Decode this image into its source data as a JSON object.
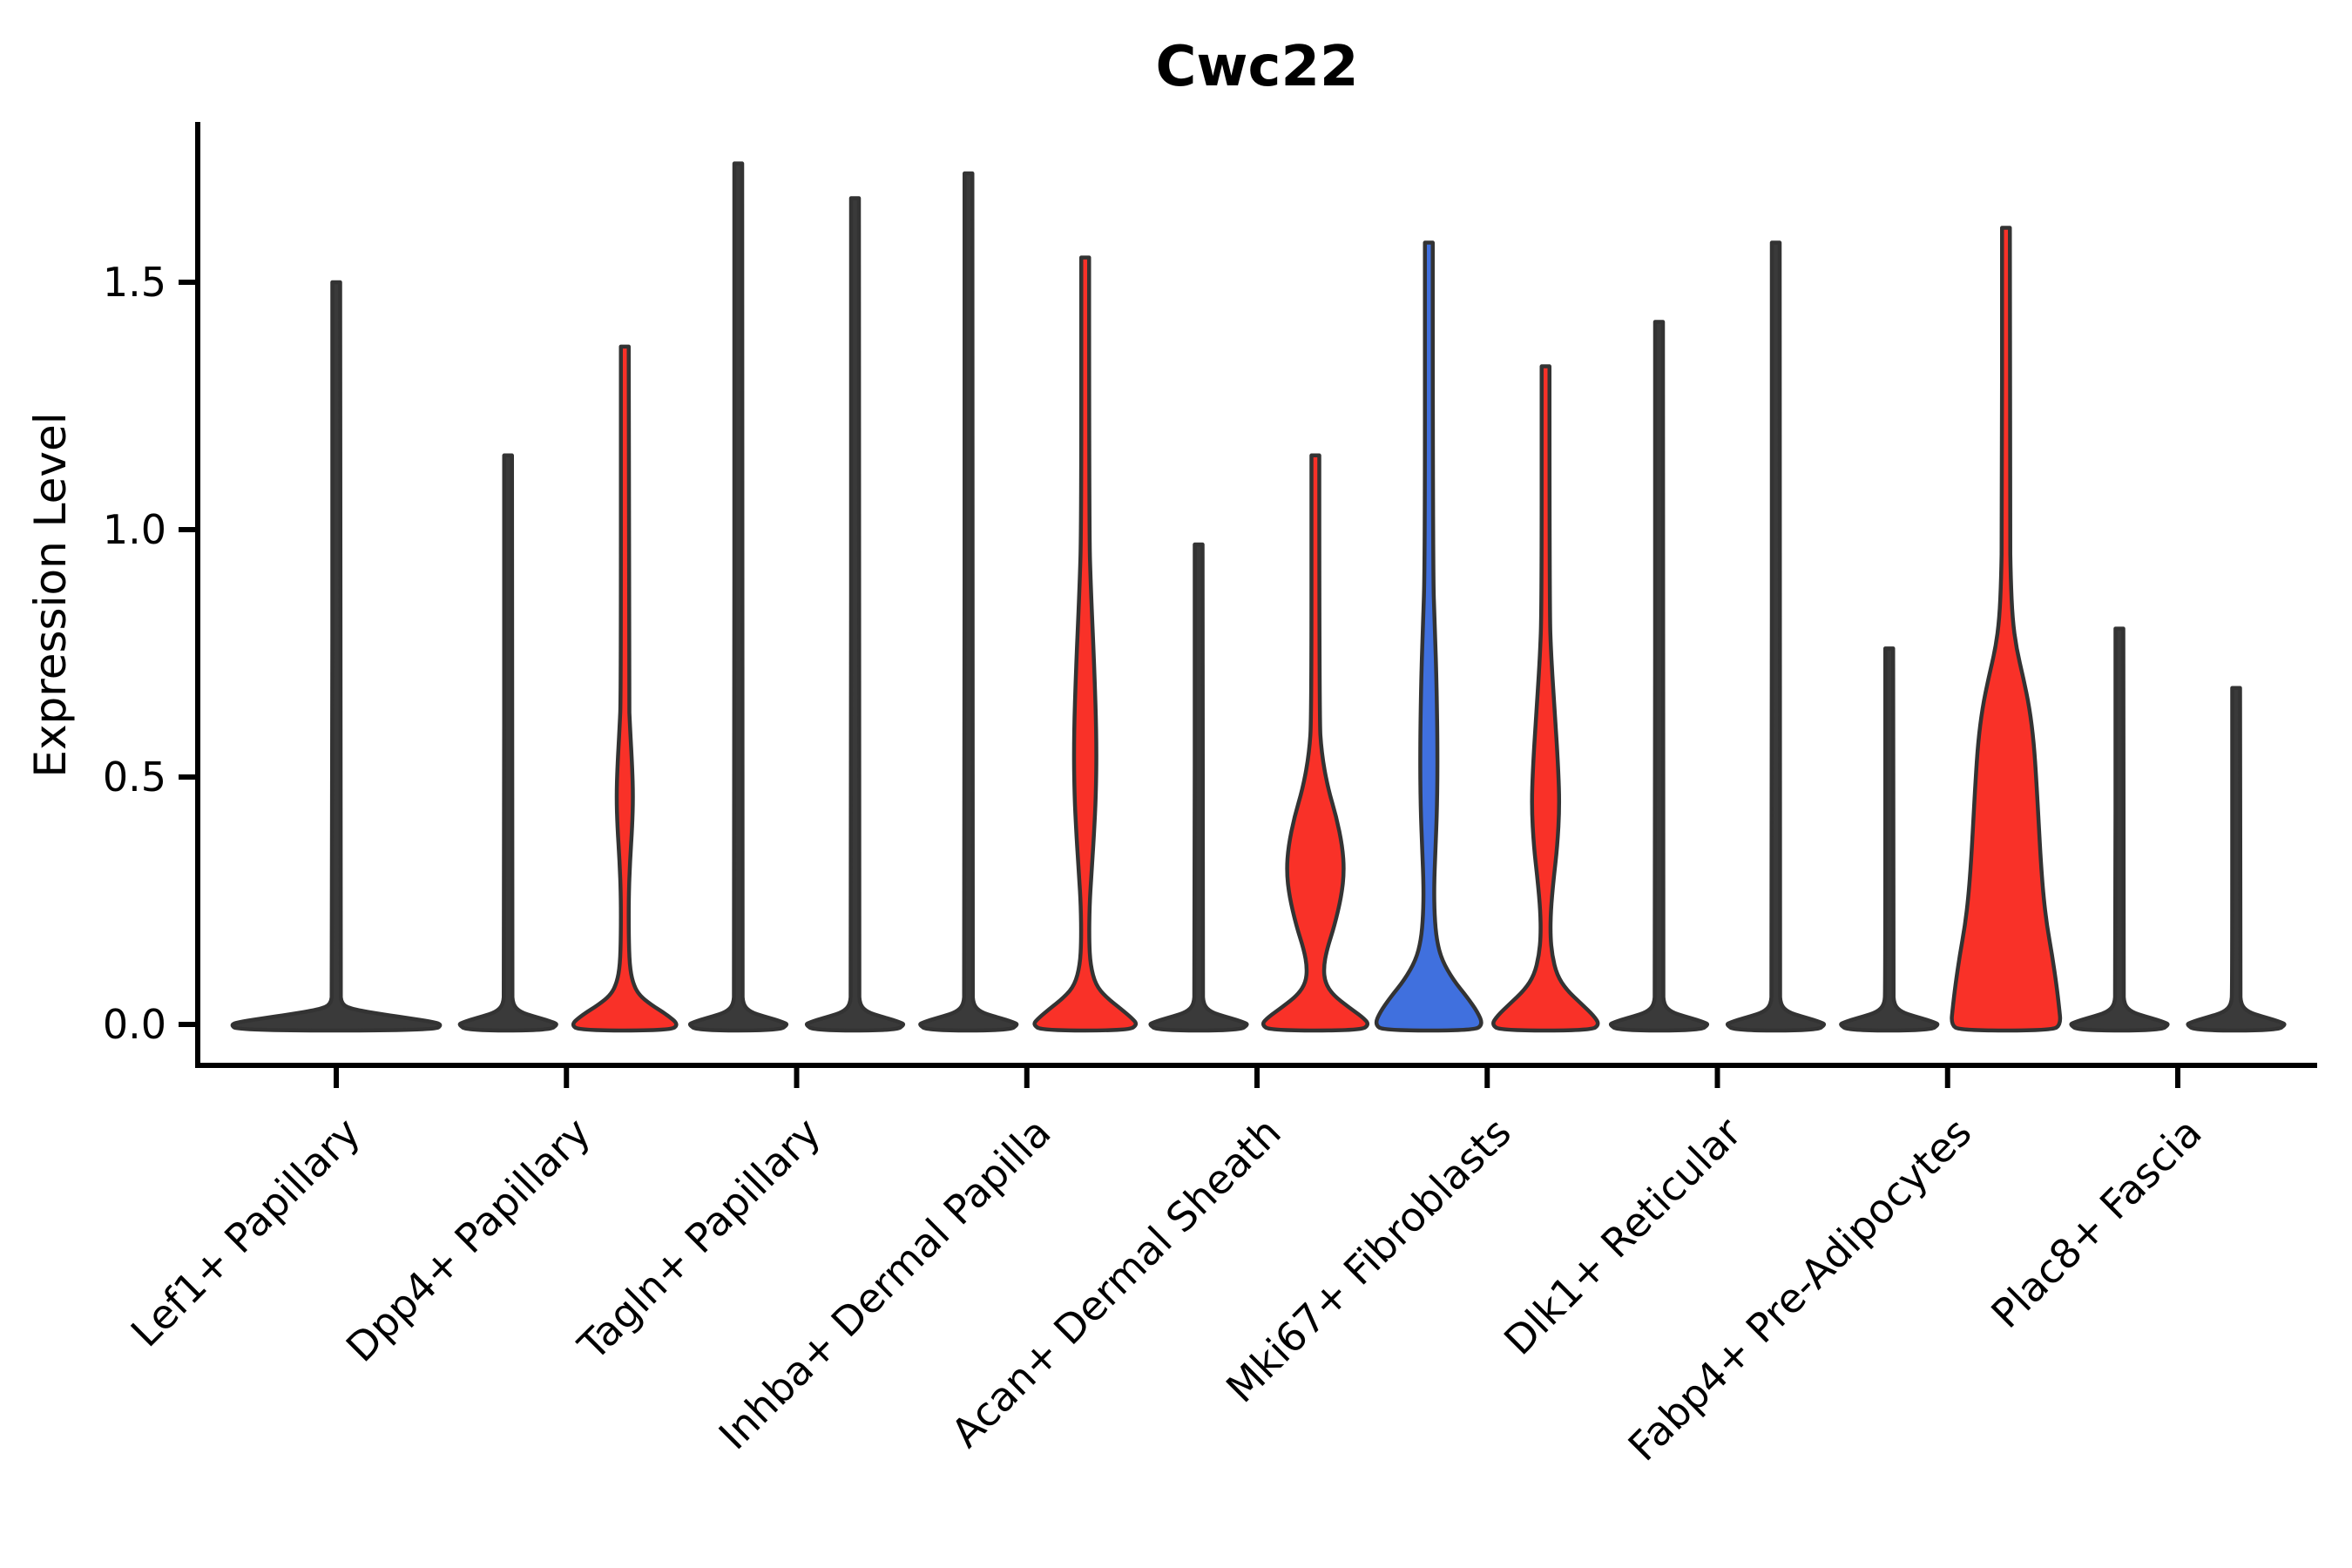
{
  "figure": {
    "background": "#ffffff"
  },
  "chart_data": {
    "type": "violin",
    "title": "Cwc22",
    "xlabel": "",
    "ylabel": "Expression Level",
    "legend": "none",
    "grid": false,
    "y_axis": {
      "lim": [
        -0.08,
        1.82
      ],
      "ticks": [
        {
          "value": 0.0,
          "label": "0.0"
        },
        {
          "value": 0.5,
          "label": "0.5"
        },
        {
          "value": 1.0,
          "label": "1.0"
        },
        {
          "value": 1.5,
          "label": "1.5"
        }
      ]
    },
    "colors": {
      "red": "#F93128",
      "blue": "#4070DE",
      "dark": "#3A3A3A",
      "outline": "#333333",
      "axis": "#000000"
    },
    "categories": [
      "Lef1+ Papillary",
      "Dpp4+ Papillary",
      "Tagln+ Papillary",
      "Inhba+ Dermal Papilla",
      "Acan+ Dermal Sheath",
      "Mki67+ Fibroblasts",
      "Dlk1+ Reticular",
      "Fabp4+ Pre-Adipocytes",
      "Plac8+ Fascia"
    ],
    "groups": [
      {
        "category": "Lef1+ Papillary",
        "violins": [
          {
            "color": "dark",
            "top": 1.5,
            "width": "full",
            "profile": [
              [
                1.5,
                4.5
              ],
              [
                0.07,
                4.5
              ],
              [
                0.04,
                6
              ],
              [
                0.03,
                20
              ],
              [
                0.02,
                55
              ],
              [
                0.012,
                85
              ],
              [
                0.006,
                108
              ],
              [
                0,
                122
              ]
            ]
          }
        ]
      },
      {
        "category": "Dpp4+ Papillary",
        "violins": [
          {
            "color": "dark",
            "top": 1.15,
            "width": "half",
            "profile": [
              [
                1.15,
                4.5
              ],
              [
                0.07,
                4.5
              ],
              [
                0.04,
                5.5
              ],
              [
                0.025,
                14
              ],
              [
                0.016,
                30
              ],
              [
                0.009,
                44
              ],
              [
                0.004,
                52
              ],
              [
                0,
                57
              ]
            ]
          },
          {
            "color": "red",
            "top": 1.37,
            "width": "half",
            "profile": [
              [
                1.37,
                4.5
              ],
              [
                0.66,
                4.5
              ],
              [
                0.6,
                6
              ],
              [
                0.52,
                8.5
              ],
              [
                0.46,
                9.5
              ],
              [
                0.4,
                8.5
              ],
              [
                0.33,
                6
              ],
              [
                0.26,
                4.5
              ],
              [
                0.18,
                4.5
              ],
              [
                0.12,
                5.5
              ],
              [
                0.085,
                9
              ],
              [
                0.06,
                16
              ],
              [
                0.04,
                30
              ],
              [
                0.02,
                48
              ],
              [
                0,
                62
              ]
            ]
          }
        ]
      },
      {
        "category": "Tagln+ Papillary",
        "violins": [
          {
            "color": "dark",
            "top": 1.74,
            "width": "half",
            "profile": [
              [
                1.74,
                4.5
              ],
              [
                0.07,
                4.5
              ],
              [
                0.04,
                5.5
              ],
              [
                0.025,
                14
              ],
              [
                0.016,
                30
              ],
              [
                0.009,
                44
              ],
              [
                0.004,
                52
              ],
              [
                0,
                57
              ]
            ]
          },
          {
            "color": "dark",
            "top": 1.67,
            "width": "half",
            "profile": [
              [
                1.67,
                4.5
              ],
              [
                0.07,
                4.5
              ],
              [
                0.04,
                5.5
              ],
              [
                0.025,
                14
              ],
              [
                0.016,
                30
              ],
              [
                0.009,
                44
              ],
              [
                0.004,
                52
              ],
              [
                0,
                57
              ]
            ]
          }
        ]
      },
      {
        "category": "Inhba+ Dermal Papilla",
        "violins": [
          {
            "color": "dark",
            "top": 1.72,
            "width": "half",
            "profile": [
              [
                1.72,
                4.5
              ],
              [
                0.07,
                4.5
              ],
              [
                0.04,
                5.5
              ],
              [
                0.025,
                14
              ],
              [
                0.016,
                30
              ],
              [
                0.009,
                44
              ],
              [
                0.004,
                52
              ],
              [
                0,
                57
              ]
            ]
          },
          {
            "color": "red",
            "top": 1.55,
            "width": "half",
            "profile": [
              [
                1.55,
                4.5
              ],
              [
                1.0,
                4.5
              ],
              [
                0.88,
                6.5
              ],
              [
                0.72,
                10.5
              ],
              [
                0.58,
                13
              ],
              [
                0.47,
                12.5
              ],
              [
                0.38,
                10
              ],
              [
                0.3,
                7
              ],
              [
                0.24,
                5
              ],
              [
                0.17,
                4.5
              ],
              [
                0.12,
                6
              ],
              [
                0.08,
                12
              ],
              [
                0.055,
                24
              ],
              [
                0.03,
                42
              ],
              [
                0.012,
                54
              ],
              [
                0,
                60
              ]
            ]
          }
        ]
      },
      {
        "category": "Acan+ Dermal Sheath",
        "violins": [
          {
            "color": "dark",
            "top": 0.97,
            "width": "half",
            "profile": [
              [
                0.97,
                4.5
              ],
              [
                0.07,
                4.5
              ],
              [
                0.04,
                5.5
              ],
              [
                0.025,
                14
              ],
              [
                0.016,
                30
              ],
              [
                0.009,
                44
              ],
              [
                0.004,
                52
              ],
              [
                0,
                57
              ]
            ]
          },
          {
            "color": "red",
            "top": 1.15,
            "width": "half",
            "profile": [
              [
                1.15,
                4.5
              ],
              [
                0.62,
                4.5
              ],
              [
                0.55,
                7
              ],
              [
                0.48,
                14
              ],
              [
                0.42,
                24
              ],
              [
                0.36,
                31
              ],
              [
                0.31,
                33
              ],
              [
                0.26,
                30
              ],
              [
                0.2,
                22
              ],
              [
                0.15,
                13
              ],
              [
                0.115,
                9.5
              ],
              [
                0.085,
                11
              ],
              [
                0.06,
                20
              ],
              [
                0.035,
                38
              ],
              [
                0.015,
                54
              ],
              [
                0,
                62
              ]
            ]
          }
        ]
      },
      {
        "category": "Mki67+ Fibroblasts",
        "violins": [
          {
            "color": "blue",
            "top": 1.58,
            "width": "half",
            "profile": [
              [
                1.58,
                4.5
              ],
              [
                0.92,
                4.5
              ],
              [
                0.8,
                7
              ],
              [
                0.68,
                9
              ],
              [
                0.55,
                10
              ],
              [
                0.44,
                9.5
              ],
              [
                0.35,
                7.5
              ],
              [
                0.28,
                6
              ],
              [
                0.22,
                6.5
              ],
              [
                0.17,
                9
              ],
              [
                0.13,
                15
              ],
              [
                0.09,
                28
              ],
              [
                0.055,
                44
              ],
              [
                0.025,
                56
              ],
              [
                0,
                62
              ]
            ]
          },
          {
            "color": "red",
            "top": 1.33,
            "width": "half",
            "profile": [
              [
                1.33,
                4.5
              ],
              [
                0.84,
                4.5
              ],
              [
                0.74,
                6.5
              ],
              [
                0.62,
                11
              ],
              [
                0.52,
                14.5
              ],
              [
                0.44,
                16
              ],
              [
                0.36,
                13.5
              ],
              [
                0.29,
                9
              ],
              [
                0.23,
                6
              ],
              [
                0.18,
                5.5
              ],
              [
                0.14,
                7.5
              ],
              [
                0.1,
                13
              ],
              [
                0.07,
                24
              ],
              [
                0.04,
                42
              ],
              [
                0.018,
                55
              ],
              [
                0,
                62
              ]
            ]
          }
        ]
      },
      {
        "category": "Dlk1+ Reticular",
        "violins": [
          {
            "color": "dark",
            "top": 1.42,
            "width": "half",
            "profile": [
              [
                1.42,
                4.5
              ],
              [
                0.07,
                4.5
              ],
              [
                0.04,
                5.5
              ],
              [
                0.025,
                14
              ],
              [
                0.016,
                30
              ],
              [
                0.009,
                44
              ],
              [
                0.004,
                52
              ],
              [
                0,
                57
              ]
            ]
          },
          {
            "color": "dark",
            "top": 1.58,
            "width": "half",
            "profile": [
              [
                1.58,
                4.5
              ],
              [
                0.07,
                4.5
              ],
              [
                0.04,
                5.5
              ],
              [
                0.025,
                14
              ],
              [
                0.016,
                30
              ],
              [
                0.009,
                44
              ],
              [
                0.004,
                52
              ],
              [
                0,
                57
              ]
            ]
          }
        ]
      },
      {
        "category": "Fabp4+ Pre-Adipocytes",
        "violins": [
          {
            "color": "dark",
            "top": 0.76,
            "width": "half",
            "profile": [
              [
                0.76,
                4.5
              ],
              [
                0.07,
                4.5
              ],
              [
                0.04,
                5.5
              ],
              [
                0.025,
                14
              ],
              [
                0.016,
                30
              ],
              [
                0.009,
                44
              ],
              [
                0.004,
                52
              ],
              [
                0,
                57
              ]
            ]
          },
          {
            "color": "red",
            "top": 1.61,
            "width": "half",
            "profile": [
              [
                1.61,
                4.5
              ],
              [
                1.0,
                4.5
              ],
              [
                0.9,
                5.5
              ],
              [
                0.82,
                7.5
              ],
              [
                0.76,
                12
              ],
              [
                0.7,
                20
              ],
              [
                0.64,
                27
              ],
              [
                0.57,
                32
              ],
              [
                0.49,
                35
              ],
              [
                0.41,
                37.5
              ],
              [
                0.33,
                40
              ],
              [
                0.26,
                43
              ],
              [
                0.2,
                47
              ],
              [
                0.14,
                53
              ],
              [
                0.08,
                58
              ],
              [
                0.035,
                61
              ],
              [
                0,
                63
              ]
            ]
          }
        ]
      },
      {
        "category": "Plac8+ Fascia",
        "violins": [
          {
            "color": "dark",
            "top": 0.8,
            "width": "half",
            "profile": [
              [
                0.8,
                4.5
              ],
              [
                0.07,
                4.5
              ],
              [
                0.04,
                5.5
              ],
              [
                0.025,
                14
              ],
              [
                0.016,
                30
              ],
              [
                0.009,
                44
              ],
              [
                0.004,
                52
              ],
              [
                0,
                57
              ]
            ]
          },
          {
            "color": "dark",
            "top": 0.68,
            "width": "half",
            "profile": [
              [
                0.68,
                4.5
              ],
              [
                0.07,
                4.5
              ],
              [
                0.04,
                5.5
              ],
              [
                0.025,
                14
              ],
              [
                0.016,
                30
              ],
              [
                0.009,
                44
              ],
              [
                0.004,
                52
              ],
              [
                0,
                57
              ]
            ]
          }
        ]
      }
    ]
  }
}
